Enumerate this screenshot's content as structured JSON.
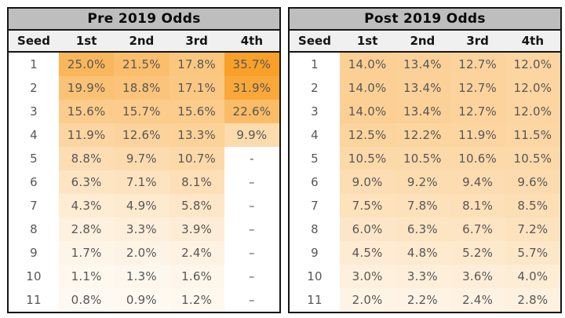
{
  "page": {
    "background": "#ffffff"
  },
  "styles": {
    "title_bg": "#BEBEBE",
    "header_bg": "#F0F0F0",
    "border_color": "#151515",
    "title_text_color": "#0A0A0A",
    "header_text_color": "#141414",
    "data_text_color": "#575757"
  },
  "heat_scale": {
    "max_value": 35.7,
    "exponent": 0.75,
    "start_color": "#FFFFFF",
    "end_color": "#F8A028"
  },
  "tables": [
    {
      "id": "pre-2019",
      "title": "Pre 2019 Odds",
      "columns": [
        "Seed",
        "1st",
        "2nd",
        "3rd",
        "4th"
      ],
      "rows": [
        {
          "seed": "1",
          "cells": [
            "25.0%",
            "21.5%",
            "17.8%",
            "35.7%"
          ]
        },
        {
          "seed": "2",
          "cells": [
            "19.9%",
            "18.8%",
            "17.1%",
            "31.9%"
          ]
        },
        {
          "seed": "3",
          "cells": [
            "15.6%",
            "15.7%",
            "15.6%",
            "22.6%"
          ]
        },
        {
          "seed": "4",
          "cells": [
            "11.9%",
            "12.6%",
            "13.3%",
            "9.9%"
          ]
        },
        {
          "seed": "5",
          "cells": [
            "8.8%",
            "9.7%",
            "10.7%",
            "-"
          ]
        },
        {
          "seed": "6",
          "cells": [
            "6.3%",
            "7.1%",
            "8.1%",
            "–"
          ]
        },
        {
          "seed": "7",
          "cells": [
            "4.3%",
            "4.9%",
            "5.8%",
            "–"
          ]
        },
        {
          "seed": "8",
          "cells": [
            "2.8%",
            "3.3%",
            "3.9%",
            "–"
          ]
        },
        {
          "seed": "9",
          "cells": [
            "1.7%",
            "2.0%",
            "2.4%",
            "–"
          ]
        },
        {
          "seed": "10",
          "cells": [
            "1.1%",
            "1.3%",
            "1.6%",
            "–"
          ]
        },
        {
          "seed": "11",
          "cells": [
            "0.8%",
            "0.9%",
            "1.2%",
            "–"
          ]
        }
      ]
    },
    {
      "id": "post-2019",
      "title": "Post 2019 Odds",
      "columns": [
        "Seed",
        "1st",
        "2nd",
        "3rd",
        "4th"
      ],
      "rows": [
        {
          "seed": "1",
          "cells": [
            "14.0%",
            "13.4%",
            "12.7%",
            "12.0%"
          ]
        },
        {
          "seed": "2",
          "cells": [
            "14.0%",
            "13.4%",
            "12.7%",
            "12.0%"
          ]
        },
        {
          "seed": "3",
          "cells": [
            "14.0%",
            "13.4%",
            "12.7%",
            "12.0%"
          ]
        },
        {
          "seed": "4",
          "cells": [
            "12.5%",
            "12.2%",
            "11.9%",
            "11.5%"
          ]
        },
        {
          "seed": "5",
          "cells": [
            "10.5%",
            "10.5%",
            "10.6%",
            "10.5%"
          ]
        },
        {
          "seed": "6",
          "cells": [
            "9.0%",
            "9.2%",
            "9.4%",
            "9.6%"
          ]
        },
        {
          "seed": "7",
          "cells": [
            "7.5%",
            "7.8%",
            "8.1%",
            "8.5%"
          ]
        },
        {
          "seed": "8",
          "cells": [
            "6.0%",
            "6.3%",
            "6.7%",
            "7.2%"
          ]
        },
        {
          "seed": "9",
          "cells": [
            "4.5%",
            "4.8%",
            "5.2%",
            "5.7%"
          ]
        },
        {
          "seed": "10",
          "cells": [
            "3.0%",
            "3.3%",
            "3.6%",
            "4.0%"
          ]
        },
        {
          "seed": "11",
          "cells": [
            "2.0%",
            "2.2%",
            "2.4%",
            "2.8%"
          ]
        }
      ]
    }
  ],
  "chart_data": [
    {
      "type": "heatmap",
      "title": "Pre 2019 Odds",
      "row_label": "Seed",
      "row_labels": [
        1,
        2,
        3,
        4,
        5,
        6,
        7,
        8,
        9,
        10,
        11
      ],
      "columns": [
        "1st",
        "2nd",
        "3rd",
        "4th"
      ],
      "unit": "%",
      "values": [
        [
          25.0,
          21.5,
          17.8,
          35.7
        ],
        [
          19.9,
          18.8,
          17.1,
          31.9
        ],
        [
          15.6,
          15.7,
          15.6,
          22.6
        ],
        [
          11.9,
          12.6,
          13.3,
          9.9
        ],
        [
          8.8,
          9.7,
          10.7,
          null
        ],
        [
          6.3,
          7.1,
          8.1,
          null
        ],
        [
          4.3,
          4.9,
          5.8,
          null
        ],
        [
          2.8,
          3.3,
          3.9,
          null
        ],
        [
          1.7,
          2.0,
          2.4,
          null
        ],
        [
          1.1,
          1.3,
          1.6,
          null
        ],
        [
          0.8,
          0.9,
          1.2,
          null
        ]
      ],
      "color_scale": {
        "min": 0,
        "max": 35.7,
        "min_color": "#FFFFFF",
        "max_color": "#F8A028"
      }
    },
    {
      "type": "heatmap",
      "title": "Post 2019 Odds",
      "row_label": "Seed",
      "row_labels": [
        1,
        2,
        3,
        4,
        5,
        6,
        7,
        8,
        9,
        10,
        11
      ],
      "columns": [
        "1st",
        "2nd",
        "3rd",
        "4th"
      ],
      "unit": "%",
      "values": [
        [
          14.0,
          13.4,
          12.7,
          12.0
        ],
        [
          14.0,
          13.4,
          12.7,
          12.0
        ],
        [
          14.0,
          13.4,
          12.7,
          12.0
        ],
        [
          12.5,
          12.2,
          11.9,
          11.5
        ],
        [
          10.5,
          10.5,
          10.6,
          10.5
        ],
        [
          9.0,
          9.2,
          9.4,
          9.6
        ],
        [
          7.5,
          7.8,
          8.1,
          8.5
        ],
        [
          6.0,
          6.3,
          6.7,
          7.2
        ],
        [
          4.5,
          4.8,
          5.2,
          5.7
        ],
        [
          3.0,
          3.3,
          3.6,
          4.0
        ],
        [
          2.0,
          2.2,
          2.4,
          2.8
        ]
      ],
      "color_scale": {
        "min": 0,
        "max": 35.7,
        "min_color": "#FFFFFF",
        "max_color": "#F8A028"
      }
    }
  ]
}
